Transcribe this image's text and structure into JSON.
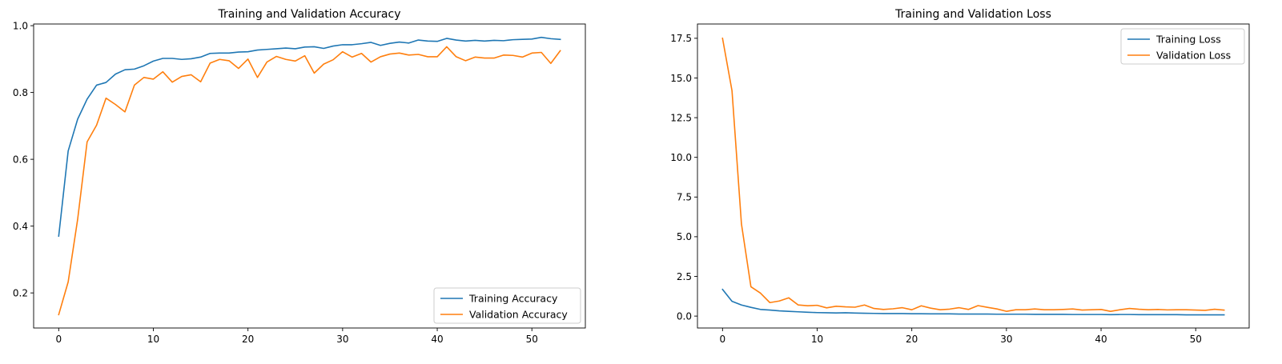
{
  "chart_data": [
    {
      "type": "line",
      "title": "Training and Validation Accuracy",
      "xlabel": "",
      "ylabel": "",
      "xlim": [
        -2.65,
        55.65
      ],
      "ylim": [
        0.095,
        1.005
      ],
      "xticks": [
        0,
        10,
        20,
        30,
        40,
        50
      ],
      "yticks": [
        0.2,
        0.4,
        0.6,
        0.8,
        1.0
      ],
      "ytick_labels": [
        "0.2",
        "0.4",
        "0.6",
        "0.8",
        "1.0"
      ],
      "grid": false,
      "legend_position": "lower right",
      "x": [
        0,
        1,
        2,
        3,
        4,
        5,
        6,
        7,
        8,
        9,
        10,
        11,
        12,
        13,
        14,
        15,
        16,
        17,
        18,
        19,
        20,
        21,
        22,
        23,
        24,
        25,
        26,
        27,
        28,
        29,
        30,
        31,
        32,
        33,
        34,
        35,
        36,
        37,
        38,
        39,
        40,
        41,
        42,
        43,
        44,
        45,
        46,
        47,
        48,
        49,
        50,
        51,
        52,
        53
      ],
      "series": [
        {
          "name": "Training Accuracy",
          "color": "#1f77b4",
          "values": [
            0.37,
            0.625,
            0.72,
            0.78,
            0.822,
            0.83,
            0.855,
            0.868,
            0.87,
            0.88,
            0.894,
            0.902,
            0.902,
            0.899,
            0.901,
            0.906,
            0.917,
            0.918,
            0.918,
            0.921,
            0.922,
            0.927,
            0.929,
            0.931,
            0.933,
            0.931,
            0.936,
            0.937,
            0.932,
            0.939,
            0.943,
            0.943,
            0.946,
            0.95,
            0.941,
            0.947,
            0.951,
            0.948,
            0.957,
            0.954,
            0.953,
            0.962,
            0.957,
            0.954,
            0.956,
            0.954,
            0.956,
            0.955,
            0.958,
            0.959,
            0.96,
            0.965,
            0.961,
            0.959
          ]
        },
        {
          "name": "Validation Accuracy",
          "color": "#ff7f0e",
          "values": [
            0.135,
            0.233,
            0.42,
            0.652,
            0.702,
            0.783,
            0.764,
            0.742,
            0.822,
            0.845,
            0.84,
            0.862,
            0.831,
            0.848,
            0.853,
            0.832,
            0.888,
            0.899,
            0.895,
            0.872,
            0.9,
            0.845,
            0.891,
            0.908,
            0.899,
            0.894,
            0.91,
            0.858,
            0.885,
            0.898,
            0.922,
            0.906,
            0.917,
            0.891,
            0.907,
            0.915,
            0.918,
            0.912,
            0.914,
            0.907,
            0.907,
            0.937,
            0.907,
            0.895,
            0.906,
            0.903,
            0.903,
            0.912,
            0.911,
            0.906,
            0.918,
            0.92,
            0.887,
            0.925
          ]
        }
      ]
    },
    {
      "type": "line",
      "title": "Training and Validation Loss",
      "xlabel": "",
      "ylabel": "",
      "xlim": [
        -2.65,
        55.65
      ],
      "ylim": [
        -0.75,
        18.4
      ],
      "xticks": [
        0,
        10,
        20,
        30,
        40,
        50
      ],
      "yticks": [
        0.0,
        2.5,
        5.0,
        7.5,
        10.0,
        12.5,
        15.0,
        17.5
      ],
      "ytick_labels": [
        "0.0",
        "2.5",
        "5.0",
        "7.5",
        "10.0",
        "12.5",
        "15.0",
        "17.5"
      ],
      "grid": false,
      "legend_position": "upper right",
      "x": [
        0,
        1,
        2,
        3,
        4,
        5,
        6,
        7,
        8,
        9,
        10,
        11,
        12,
        13,
        14,
        15,
        16,
        17,
        18,
        19,
        20,
        21,
        22,
        23,
        24,
        25,
        26,
        27,
        28,
        29,
        30,
        31,
        32,
        33,
        34,
        35,
        36,
        37,
        38,
        39,
        40,
        41,
        42,
        43,
        44,
        45,
        46,
        47,
        48,
        49,
        50,
        51,
        52,
        53
      ],
      "series": [
        {
          "name": "Training Loss",
          "color": "#1f77b4",
          "values": [
            1.68,
            0.93,
            0.7,
            0.55,
            0.42,
            0.38,
            0.33,
            0.3,
            0.27,
            0.24,
            0.22,
            0.21,
            0.2,
            0.21,
            0.19,
            0.18,
            0.17,
            0.16,
            0.16,
            0.16,
            0.15,
            0.15,
            0.14,
            0.14,
            0.14,
            0.13,
            0.13,
            0.13,
            0.13,
            0.12,
            0.12,
            0.12,
            0.12,
            0.11,
            0.11,
            0.11,
            0.11,
            0.1,
            0.1,
            0.1,
            0.1,
            0.09,
            0.1,
            0.1,
            0.09,
            0.09,
            0.09,
            0.09,
            0.09,
            0.08,
            0.08,
            0.08,
            0.08,
            0.08
          ]
        },
        {
          "name": "Validation Loss",
          "color": "#ff7f0e",
          "values": [
            17.5,
            14.2,
            5.8,
            1.85,
            1.45,
            0.85,
            0.95,
            1.15,
            0.7,
            0.65,
            0.68,
            0.52,
            0.62,
            0.58,
            0.56,
            0.7,
            0.48,
            0.42,
            0.46,
            0.53,
            0.4,
            0.65,
            0.5,
            0.4,
            0.44,
            0.53,
            0.42,
            0.66,
            0.55,
            0.45,
            0.3,
            0.4,
            0.4,
            0.45,
            0.4,
            0.4,
            0.42,
            0.45,
            0.38,
            0.4,
            0.42,
            0.3,
            0.4,
            0.48,
            0.43,
            0.4,
            0.42,
            0.39,
            0.4,
            0.4,
            0.38,
            0.36,
            0.43,
            0.38
          ]
        }
      ]
    }
  ]
}
